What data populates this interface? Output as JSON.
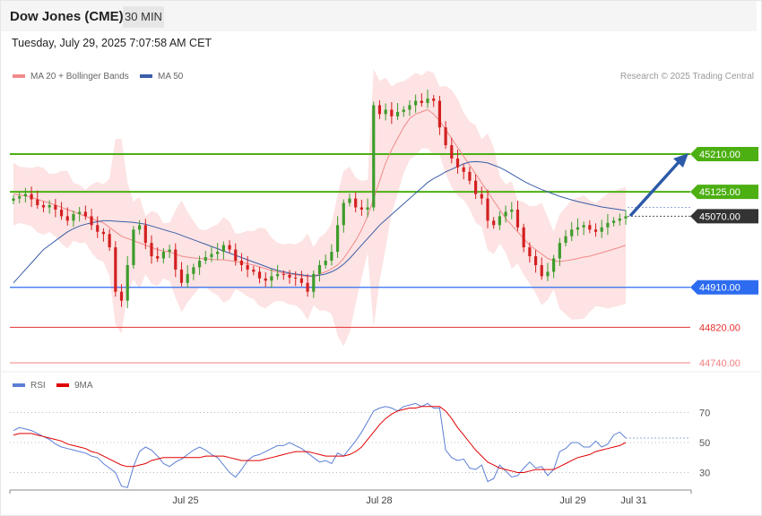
{
  "header": {
    "title": "Dow Jones (CME)",
    "timeframe": "30 MIN",
    "datetime": "Tuesday, July 29, 2025 7:07:58 AM CET"
  },
  "legend": {
    "main": [
      {
        "label": "MA 20 + Bollinger Bands",
        "color": "#f28a8a"
      },
      {
        "label": "MA 50",
        "color": "#3b5ea8"
      }
    ],
    "rsi": [
      {
        "label": "RSI",
        "color": "#5b7fd6"
      },
      {
        "label": "9MA",
        "color": "#e00000"
      }
    ],
    "credit": "Research © 2025 Trading Central"
  },
  "chart_data": [
    {
      "type": "candlestick",
      "title": "",
      "ylim": [
        44700,
        45390
      ],
      "x_tick_labels": [
        "Jul 25",
        "Jul 28",
        "Jul 29",
        "Jul 31"
      ],
      "levels": [
        {
          "value": 45210.0,
          "label": "45210.00",
          "kind": "resistance",
          "color": "#4caf12"
        },
        {
          "value": 45125.0,
          "label": "45125.00",
          "kind": "resistance",
          "color": "#4caf12"
        },
        {
          "value": 45070.0,
          "label": "45070.00",
          "kind": "last-price",
          "color": "#333333"
        },
        {
          "value": 44910.0,
          "label": "44910.00",
          "kind": "pivot",
          "color": "#2d6cf0"
        },
        {
          "value": 44820.0,
          "label": "44820.00",
          "kind": "support",
          "color": "#e53030"
        },
        {
          "value": 44740.0,
          "label": "44740.00",
          "kind": "support",
          "color": "#f08080"
        }
      ],
      "close_series": [
        45110,
        45115,
        45120,
        45108,
        45095,
        45090,
        45095,
        45085,
        45070,
        45060,
        45075,
        45080,
        45070,
        45050,
        45035,
        45030,
        45000,
        44900,
        44880,
        44960,
        45040,
        45050,
        45010,
        44980,
        44975,
        44990,
        44995,
        44950,
        44920,
        44940,
        44955,
        44970,
        44978,
        44985,
        44990,
        45005,
        44995,
        44970,
        44960,
        44950,
        44945,
        44930,
        44925,
        44935,
        44940,
        44938,
        44932,
        44930,
        44920,
        44900,
        44940,
        44960,
        44970,
        44990,
        45050,
        45100,
        45110,
        45090,
        45085,
        45090,
        45320,
        45300,
        45310,
        45295,
        45305,
        45310,
        45320,
        45330,
        45325,
        45335,
        45330,
        45270,
        45230,
        45200,
        45180,
        45170,
        45150,
        45120,
        45110,
        45060,
        45050,
        45070,
        45080,
        45085,
        45045,
        45000,
        44980,
        44960,
        44935,
        44945,
        44975,
        45010,
        45025,
        45040,
        45045,
        45050,
        45040,
        45035,
        45045,
        45055,
        45060,
        45065,
        45070
      ],
      "ma20": [
        45120,
        45118,
        45116,
        45113,
        45108,
        45104,
        45100,
        45095,
        45090,
        45085,
        45080,
        45075,
        45070,
        45065,
        45060,
        45055,
        45045,
        45035,
        45025,
        45020,
        45015,
        45010,
        45005,
        45000,
        44995,
        44992,
        44990,
        44985,
        44980,
        44978,
        44976,
        44975,
        44974,
        44973,
        44972,
        44972,
        44970,
        44968,
        44966,
        44963,
        44960,
        44956,
        44952,
        44948,
        44945,
        44942,
        44940,
        44938,
        44936,
        44934,
        44935,
        44940,
        44945,
        44952,
        44960,
        44975,
        44995,
        45015,
        45040,
        45070,
        45110,
        45150,
        45190,
        45220,
        45245,
        45270,
        45290,
        45300,
        45305,
        45310,
        45300,
        45285,
        45265,
        45245,
        45225,
        45205,
        45185,
        45165,
        45145,
        45125,
        45105,
        45085,
        45065,
        45050,
        45035,
        45020,
        45005,
        44995,
        44985,
        44975,
        44970,
        44968,
        44970,
        44972,
        44975,
        44978,
        44980,
        44984,
        44988,
        44992,
        44996,
        45000,
        45005
      ],
      "ma50": [
        44920,
        44935,
        44950,
        44965,
        44980,
        44995,
        45005,
        45015,
        45025,
        45035,
        45042,
        45048,
        45052,
        45055,
        45058,
        45060,
        45060,
        45059,
        45058,
        45057,
        45056,
        45054,
        45052,
        45048,
        45044,
        45040,
        45036,
        45032,
        45027,
        45022,
        45017,
        45012,
        45007,
        45002,
        44997,
        44992,
        44987,
        44982,
        44977,
        44972,
        44967,
        44962,
        44957,
        44952,
        44948,
        44945,
        44942,
        44940,
        44938,
        44936,
        44935,
        44937,
        44940,
        44945,
        44952,
        44962,
        44975,
        44990,
        45005,
        45020,
        45035,
        45050,
        45062,
        45074,
        45086,
        45098,
        45110,
        45122,
        45134,
        45146,
        45155,
        45162,
        45170,
        45176,
        45182,
        45188,
        45192,
        45193,
        45192,
        45190,
        45185,
        45180,
        45173,
        45165,
        45157,
        45149,
        45142,
        45136,
        45130,
        45125,
        45120,
        45115,
        45111,
        45107,
        45103,
        45100,
        45097,
        45094,
        45091,
        45089,
        45087,
        45085,
        45083
      ]
    },
    {
      "type": "line",
      "title": "",
      "ylim": [
        10,
        90
      ],
      "y_ticks": [
        30,
        50,
        70
      ],
      "series": [
        {
          "name": "RSI",
          "values": [
            58,
            60,
            59,
            58,
            56,
            54,
            52,
            49,
            47,
            46,
            45,
            44,
            43,
            41,
            40,
            36,
            33,
            30,
            21,
            20,
            34,
            44,
            47,
            45,
            41,
            36,
            34,
            37,
            39,
            42,
            45,
            47,
            45,
            42,
            40,
            35,
            30,
            27,
            32,
            38,
            41,
            42,
            44,
            46,
            48,
            48,
            50,
            48,
            46,
            43,
            40,
            37,
            38,
            36,
            43,
            41,
            46,
            51,
            57,
            64,
            71,
            73,
            74,
            73,
            71,
            74,
            75,
            76,
            74,
            76,
            73,
            73,
            45,
            40,
            38,
            39,
            33,
            32,
            35,
            24,
            26,
            35,
            31,
            27,
            28,
            33,
            37,
            33,
            34,
            28,
            32,
            44,
            46,
            50,
            50,
            47,
            47,
            51,
            47,
            49,
            55,
            57,
            53
          ]
        },
        {
          "name": "9MA",
          "values": [
            55,
            56,
            56,
            56,
            55,
            54,
            53,
            52,
            51,
            49,
            48,
            47,
            46,
            44,
            43,
            41,
            39,
            37,
            35,
            34,
            34,
            35,
            36,
            38,
            39,
            40,
            40,
            40,
            40,
            40,
            40,
            40,
            41,
            41,
            41,
            41,
            40,
            39,
            38,
            38,
            38,
            38,
            39,
            40,
            41,
            42,
            43,
            44,
            44,
            44,
            43,
            42,
            41,
            41,
            41,
            41,
            42,
            44,
            47,
            52,
            57,
            62,
            66,
            69,
            71,
            72,
            73,
            73,
            74,
            74,
            74,
            74,
            71,
            66,
            60,
            55,
            50,
            45,
            41,
            37,
            35,
            33,
            32,
            31,
            30,
            30,
            31,
            32,
            32,
            32,
            32,
            34,
            36,
            38,
            40,
            41,
            42,
            44,
            45,
            46,
            47,
            48,
            50
          ]
        }
      ]
    }
  ]
}
